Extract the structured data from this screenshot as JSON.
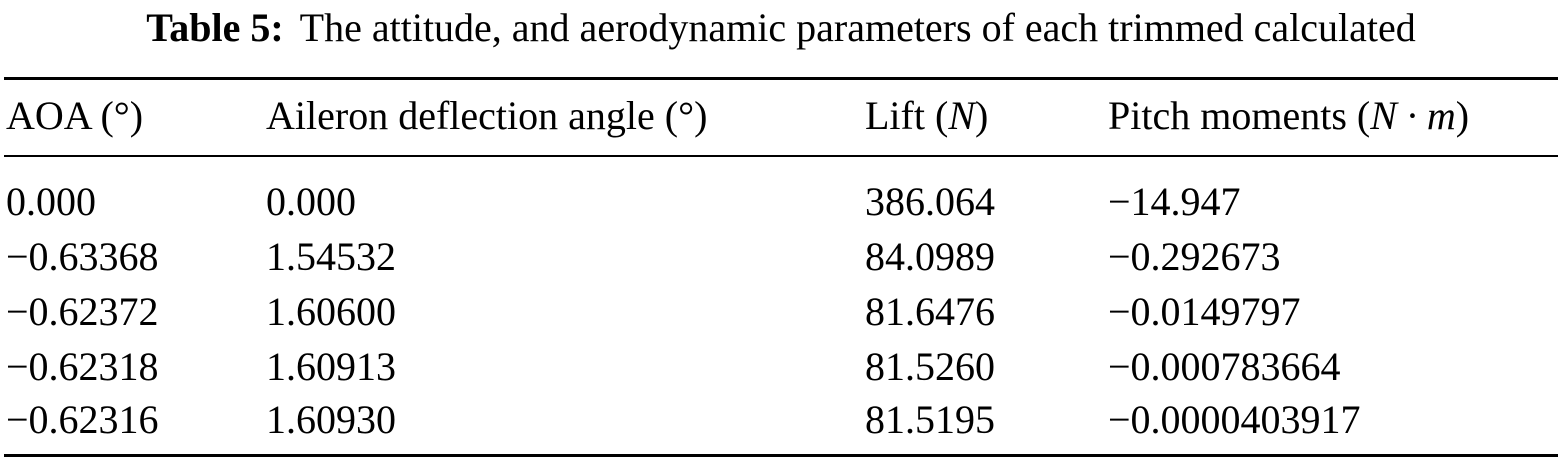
{
  "caption": {
    "label": "Table 5:",
    "text": "The attitude, and aerodynamic parameters of each trimmed calculated"
  },
  "table": {
    "headers": [
      {
        "name": "AOA",
        "open": " (",
        "unit": "°",
        "close": ")"
      },
      {
        "name": "Aileron deflection angle",
        "open": " (",
        "unit": "°",
        "close": ")"
      },
      {
        "name": "Lift",
        "open": " (",
        "unit": "N",
        "close": ")"
      },
      {
        "name": "Pitch moments",
        "open": " (",
        "unit": "N · m",
        "close": ")"
      }
    ],
    "rows": [
      [
        "0.000",
        "0.000",
        "386.064",
        "−14.947"
      ],
      [
        "−0.63368",
        "1.54532",
        "84.0989",
        "−0.292673"
      ],
      [
        "−0.62372",
        "1.60600",
        "81.6476",
        "−0.0149797"
      ],
      [
        "−0.62318",
        "1.60913",
        "81.5260",
        "−0.000783664"
      ],
      [
        "−0.62316",
        "1.60930",
        "81.5195",
        "−0.0000403917"
      ]
    ]
  }
}
